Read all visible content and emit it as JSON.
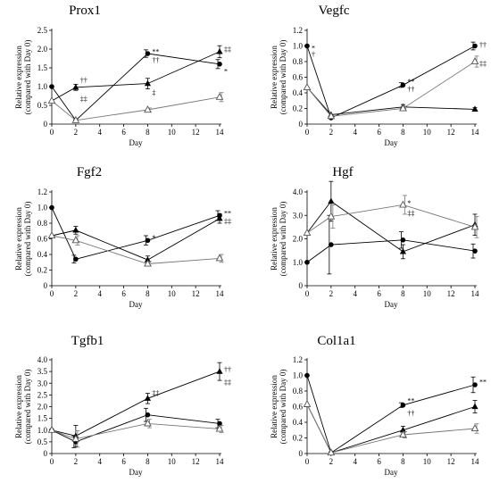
{
  "chart_data": [
    {
      "type": "line",
      "title": "Prox1",
      "xlabel": "Day",
      "ylabel": [
        "Relative expression",
        "(compared with Day 0)"
      ],
      "x": [
        0,
        2,
        8,
        14
      ],
      "xlim": [
        0,
        14
      ],
      "xticks": [
        0,
        2,
        4,
        6,
        8,
        10,
        12,
        14
      ],
      "ylim": [
        0,
        2.5
      ],
      "yticks": [
        "0",
        "0.5",
        "1.0",
        "1.5",
        "2.0",
        "2.5"
      ],
      "series": [
        {
          "marker": "circle",
          "values": [
            1.0,
            0.1,
            1.88,
            1.6
          ],
          "err": [
            0,
            0,
            0.1,
            0.12
          ]
        },
        {
          "marker": "triangle-filled",
          "values": [
            0.62,
            0.98,
            1.08,
            1.93
          ],
          "err": [
            0,
            0.08,
            0.14,
            0.16
          ]
        },
        {
          "marker": "triangle-open",
          "values": [
            0.62,
            0.1,
            0.38,
            0.72
          ],
          "err": [
            0,
            0,
            0.05,
            0.12
          ]
        }
      ],
      "annotations": [
        {
          "text": "††",
          "x": 2,
          "y": 1.18
        },
        {
          "text": "‡‡",
          "x": 2,
          "y": 0.68
        },
        {
          "text": "**",
          "x": 8,
          "y": 1.94
        },
        {
          "text": "††",
          "x": 8,
          "y": 1.72
        },
        {
          "text": "‡",
          "x": 8,
          "y": 0.85
        },
        {
          "text": "‡‡",
          "x": 14,
          "y": 2.0
        },
        {
          "text": "*",
          "x": 14,
          "y": 1.42
        }
      ]
    },
    {
      "type": "line",
      "title": "Vegfc",
      "xlabel": "Day",
      "ylabel": [
        "Relative expression",
        "(compared with Day 0)"
      ],
      "x": [
        0,
        2,
        8,
        14
      ],
      "xlim": [
        0,
        14
      ],
      "xticks": [
        0,
        2,
        4,
        6,
        8,
        10,
        12,
        14
      ],
      "ylim": [
        0,
        1.2
      ],
      "yticks": [
        "0",
        "0.2",
        "0.4",
        "0.6",
        "0.8",
        "1.0",
        "1.2"
      ],
      "series": [
        {
          "marker": "circle",
          "values": [
            1.0,
            0.08,
            0.5,
            1.0
          ],
          "err": [
            0,
            0,
            0.03,
            0.05
          ]
        },
        {
          "marker": "triangle-filled",
          "values": [
            0.47,
            0.12,
            0.22,
            0.19
          ],
          "err": [
            0,
            0,
            0.03,
            0.02
          ]
        },
        {
          "marker": "triangle-open",
          "values": [
            0.47,
            0.1,
            0.2,
            0.8
          ],
          "err": [
            0,
            0,
            0.03,
            0.07
          ]
        }
      ],
      "annotations": [
        {
          "text": "*",
          "x": 0,
          "y": 0.98
        },
        {
          "text": "†",
          "x": 0,
          "y": 0.9
        },
        {
          "text": "**",
          "x": 8,
          "y": 0.55
        },
        {
          "text": "††",
          "x": 8,
          "y": 0.45
        },
        {
          "text": "††",
          "x": 14,
          "y": 1.02
        },
        {
          "text": "‡‡",
          "x": 14,
          "y": 0.78
        }
      ]
    },
    {
      "type": "line",
      "title": "Fgf2",
      "xlabel": "Day",
      "ylabel": [
        "Relative expression",
        "(compared with Day 0)"
      ],
      "x": [
        0,
        2,
        8,
        14
      ],
      "xlim": [
        0,
        14
      ],
      "xticks": [
        0,
        2,
        4,
        6,
        8,
        10,
        12,
        14
      ],
      "ylim": [
        0,
        1.2
      ],
      "yticks": [
        "0",
        "0.2",
        "0.4",
        "0.6",
        "0.8",
        "1.0",
        "1.2"
      ],
      "series": [
        {
          "marker": "circle",
          "values": [
            1.0,
            0.34,
            0.58,
            0.9
          ],
          "err": [
            0,
            0.05,
            0.06,
            0.06
          ]
        },
        {
          "marker": "triangle-filled",
          "values": [
            0.64,
            0.71,
            0.33,
            0.86
          ],
          "err": [
            0,
            0.05,
            0.05,
            0.06
          ]
        },
        {
          "marker": "triangle-open",
          "values": [
            0.64,
            0.58,
            0.28,
            0.35
          ],
          "err": [
            0,
            0.06,
            0.03,
            0.05
          ]
        }
      ],
      "annotations": [
        {
          "text": "*",
          "x": 8,
          "y": 0.62
        },
        {
          "text": "**",
          "x": 14,
          "y": 0.93
        },
        {
          "text": "‡‡",
          "x": 14,
          "y": 0.83
        }
      ]
    },
    {
      "type": "line",
      "title": "Hgf",
      "xlabel": "Day",
      "ylabel": [
        "Relative expression",
        "(compared with Day 0)"
      ],
      "x": [
        0,
        2,
        8,
        14
      ],
      "xlim": [
        0,
        14
      ],
      "xticks": [
        0,
        2,
        4,
        6,
        8,
        10,
        12,
        14
      ],
      "ylim": [
        0,
        4.0
      ],
      "yticks": [
        "0",
        "1.0",
        "2.0",
        "3.0",
        "4.0"
      ],
      "series": [
        {
          "marker": "circle",
          "values": [
            1.0,
            1.75,
            1.95,
            1.48
          ],
          "err": [
            0,
            1.25,
            0.35,
            0.3
          ]
        },
        {
          "marker": "triangle-filled",
          "values": [
            2.25,
            3.6,
            1.45,
            2.6
          ],
          "err": [
            0,
            0.85,
            0.3,
            0.45
          ]
        },
        {
          "marker": "triangle-open",
          "values": [
            2.25,
            2.95,
            3.45,
            2.5
          ],
          "err": [
            0,
            0.5,
            0.4,
            0.45
          ]
        }
      ],
      "annotations": [
        {
          "text": "*",
          "x": 8,
          "y": 3.55
        },
        {
          "text": "‡‡",
          "x": 8,
          "y": 3.1
        }
      ]
    },
    {
      "type": "line",
      "title": "Tgfb1",
      "xlabel": "Day",
      "ylabel": [
        "Relative expression",
        "(compared with Day 0)"
      ],
      "x": [
        0,
        2,
        8,
        14
      ],
      "xlim": [
        0,
        14
      ],
      "xticks": [
        0,
        2,
        4,
        6,
        8,
        10,
        12,
        14
      ],
      "ylim": [
        0,
        4.0
      ],
      "yticks": [
        "0",
        "0.5",
        "1.0",
        "1.5",
        "2.0",
        "2.5",
        "3.0",
        "3.5",
        "4.0"
      ],
      "series": [
        {
          "marker": "circle",
          "values": [
            1.0,
            0.5,
            1.65,
            1.28
          ],
          "err": [
            0,
            0.25,
            0.28,
            0.18
          ]
        },
        {
          "marker": "triangle-filled",
          "values": [
            1.0,
            0.75,
            2.35,
            3.5
          ],
          "err": [
            0,
            0.45,
            0.22,
            0.38
          ]
        },
        {
          "marker": "triangle-open",
          "values": [
            1.0,
            0.62,
            1.28,
            1.05
          ],
          "err": [
            0,
            0.35,
            0.18,
            0.15
          ]
        }
      ],
      "annotations": [
        {
          "text": "‡‡",
          "x": 8,
          "y": 2.6
        },
        {
          "text": "††",
          "x": 14,
          "y": 3.6
        },
        {
          "text": "‡‡",
          "x": 14,
          "y": 3.05
        }
      ]
    },
    {
      "type": "line",
      "title": "Col1a1",
      "xlabel": "Day",
      "ylabel": [
        "Relative expression",
        "(compared with Day 0)"
      ],
      "x": [
        0,
        2,
        8,
        14
      ],
      "xlim": [
        0,
        14
      ],
      "xticks": [
        0,
        2,
        4,
        6,
        8,
        10,
        12,
        14
      ],
      "ylim": [
        0,
        1.2
      ],
      "yticks": [
        "0",
        "0.2",
        "0.4",
        "0.6",
        "0.8",
        "1.0",
        "1.2"
      ],
      "series": [
        {
          "marker": "circle",
          "values": [
            1.0,
            0.01,
            0.62,
            0.88
          ],
          "err": [
            0,
            0,
            0.03,
            0.1
          ]
        },
        {
          "marker": "triangle-filled",
          "values": [
            0.63,
            0.01,
            0.3,
            0.6
          ],
          "err": [
            0,
            0,
            0.05,
            0.08
          ]
        },
        {
          "marker": "triangle-open",
          "values": [
            0.63,
            0.01,
            0.24,
            0.32
          ],
          "err": [
            0,
            0,
            0.04,
            0.06
          ]
        }
      ],
      "annotations": [
        {
          "text": "**",
          "x": 8,
          "y": 0.68
        },
        {
          "text": "††",
          "x": 8,
          "y": 0.52
        },
        {
          "text": "**",
          "x": 14,
          "y": 0.92
        }
      ]
    }
  ]
}
